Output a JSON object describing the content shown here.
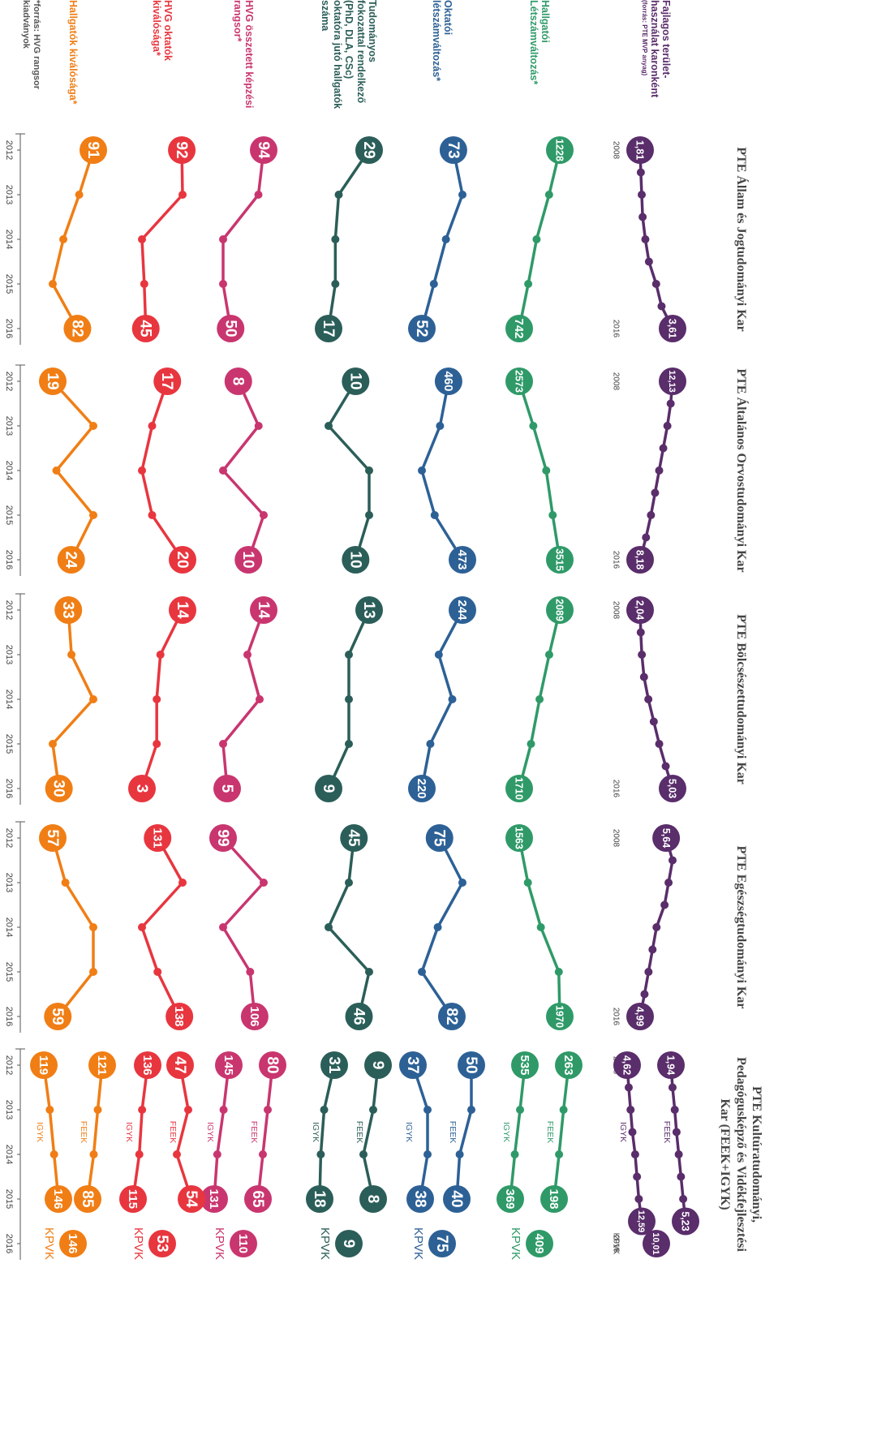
{
  "chart_data": {
    "type": "line",
    "x": [
      "2012",
      "2013",
      "2014",
      "2015",
      "2016"
    ],
    "x_long": [
      "2008",
      null,
      null,
      null,
      null,
      null,
      null,
      null,
      "2016"
    ],
    "source": "*forrás: HVG rangsor kiadványok",
    "metrics": [
      {
        "label": "Fajlagos terület-használat karonként",
        "note": "(forrás: PTE MVP anyag)",
        "color": "#5a2d6b"
      },
      {
        "label": "Hallgatói Létszámváltozás*",
        "color": "#2f9a68"
      },
      {
        "label": "Oktatói létszámváltozás*",
        "color": "#2d6196"
      },
      {
        "label": "Tudományos fokozattal rendelkező (PhD, DLA, CSc) oktatóra jutó hallgatók száma",
        "color": "#2b5e59"
      },
      {
        "label": "HVG összetett képzési rangsor*",
        "color": "#c9366f"
      },
      {
        "label": "HVG oktatók kiválósága*",
        "color": "#e8363f"
      },
      {
        "label": "Hallgatók kiválósága*",
        "color": "#f07e15"
      }
    ],
    "faculties": [
      {
        "title": "PTE Állam és Jogtudományi Kar",
        "panels": [
          {
            "series": [
              {
                "values": [
                  1.81,
                  1.85,
                  1.9,
                  1.95,
                  2.1,
                  2.3,
                  2.7,
                  3.0,
                  3.61
                ],
                "value_labels": [
                  "1,81",
                  null,
                  null,
                  null,
                  null,
                  null,
                  null,
                  null,
                  "3,61"
                ]
              }
            ]
          },
          {
            "series": [
              {
                "values": [
                  1228,
                  1100,
                  950,
                  850,
                  742
                ]
              }
            ]
          },
          {
            "series": [
              {
                "values": [
                  73,
                  79,
                  68,
                  60,
                  52
                ]
              }
            ]
          },
          {
            "series": [
              {
                "values": [
                  29,
                  20,
                  19,
                  19,
                  17
                ]
              }
            ]
          },
          {
            "series": [
              {
                "values": [
                  94,
                  87,
                  40,
                  40,
                  50
                ]
              }
            ]
          },
          {
            "series": [
              {
                "values": [
                  92,
                  93,
                  40,
                  43,
                  45
                ]
              }
            ]
          },
          {
            "series": [
              {
                "values": [
                  91,
                  83,
                  74,
                  68,
                  82
                ]
              }
            ]
          }
        ]
      },
      {
        "title": "PTE Általános Orvostudományi Kar",
        "panels": [
          {
            "series": [
              {
                "values": [
                  12.13,
                  11.9,
                  11.5,
                  11.0,
                  10.5,
                  10.0,
                  9.5,
                  8.9,
                  8.18
                ],
                "value_labels": [
                  "12,13",
                  null,
                  null,
                  null,
                  null,
                  null,
                  null,
                  null,
                  "8,18"
                ]
              }
            ]
          },
          {
            "series": [
              {
                "values": [
                  2573,
                  2900,
                  3200,
                  3350,
                  3515
                ]
              }
            ]
          },
          {
            "series": [
              {
                "values": [
                  460,
                  452,
                  435,
                  447,
                  473
                ]
              }
            ]
          },
          {
            "series": [
              {
                "values": [
                  10,
                  8,
                  11,
                  11,
                  10
                ]
              }
            ]
          },
          {
            "series": [
              {
                "values": [
                  8,
                  12,
                  5,
                  13,
                  10
                ]
              }
            ]
          },
          {
            "series": [
              {
                "values": [
                  17,
                  14,
                  12,
                  14,
                  20
                ]
              }
            ]
          },
          {
            "series": [
              {
                "values": [
                  19,
                  30,
                  20,
                  30,
                  24
                ]
              }
            ]
          }
        ]
      },
      {
        "title": "PTE Bölcsészettudományi Kar",
        "panels": [
          {
            "series": [
              {
                "values": [
                  2.04,
                  2.1,
                  2.2,
                  2.4,
                  2.8,
                  3.3,
                  3.8,
                  4.4,
                  5.03
                ],
                "value_labels": [
                  "2,04",
                  null,
                  null,
                  null,
                  null,
                  null,
                  null,
                  null,
                  "5,03"
                ]
              }
            ]
          },
          {
            "series": [
              {
                "values": [
                  2089,
                  1990,
                  1900,
                  1820,
                  1710
                ]
              }
            ]
          },
          {
            "series": [
              {
                "values": [
                  244,
                  230,
                  238,
                  225,
                  220
                ]
              }
            ]
          },
          {
            "series": [
              {
                "values": [
                  13,
                  11,
                  11,
                  11,
                  9
                ]
              }
            ]
          },
          {
            "series": [
              {
                "values": [
                  14,
                  10,
                  13,
                  4,
                  5
                ]
              }
            ]
          },
          {
            "series": [
              {
                "values": [
                  14,
                  8,
                  7,
                  7,
                  3
                ]
              }
            ]
          },
          {
            "series": [
              {
                "values": [
                  33,
                  34,
                  41,
                  28,
                  30
                ]
              }
            ]
          }
        ]
      },
      {
        "title": "PTE Egészségtudományi Kar",
        "panels": [
          {
            "series": [
              {
                "values": [
                  5.64,
                  5.8,
                  5.7,
                  5.6,
                  5.4,
                  5.3,
                  5.2,
                  5.1,
                  4.99
                ],
                "value_labels": [
                  "5,64",
                  null,
                  null,
                  null,
                  null,
                  null,
                  null,
                  null,
                  "4,99"
                ]
              }
            ]
          },
          {
            "series": [
              {
                "values": [
                  1563,
                  1650,
                  1780,
                  1960,
                  1970
                ]
              }
            ]
          },
          {
            "series": [
              {
                "values": [
                  75,
                  88,
                  74,
                  65,
                  82
                ]
              }
            ]
          },
          {
            "series": [
              {
                "values": [
                  45,
                  44,
                  40,
                  48,
                  46
                ]
              }
            ]
          },
          {
            "series": [
              {
                "values": [
                  99,
                  108,
                  99,
                  105,
                  106
                ]
              }
            ]
          },
          {
            "series": [
              {
                "values": [
                  131,
                  139,
                  126,
                  131,
                  138
                ]
              }
            ]
          },
          {
            "series": [
              {
                "values": [
                  57,
                  62,
                  73,
                  73,
                  59
                ]
              }
            ]
          }
        ]
      },
      {
        "title": "PTE Kultúratudományi, Pedagógusképző és Vidékfejlesztési Kar (FEEK+IGYK)",
        "panels": [
          {
            "series": [
              {
                "name": "FEEK",
                "values": [
                  1.94,
                  2.3,
                  2.8,
                  3.2,
                  3.7,
                  4.2,
                  4.7,
                  5.23,
                  null
                ],
                "value_labels": [
                  "1,94",
                  null,
                  null,
                  null,
                  null,
                  null,
                  null,
                  "5,23",
                  null
                ]
              },
              {
                "name": "IGYK",
                "values": [
                  4.62,
                  5.5,
                  6.5,
                  7.5,
                  9,
                  10,
                  11,
                  12.59,
                  null
                ],
                "value_labels": [
                  "4,62",
                  null,
                  null,
                  null,
                  null,
                  null,
                  null,
                  "12,59",
                  null
                ]
              },
              {
                "name": "KPVK",
                "values": [
                  null,
                  null,
                  null,
                  null,
                  null,
                  null,
                  null,
                  null,
                  10.01
                ],
                "value_labels": [
                  null,
                  null,
                  null,
                  null,
                  null,
                  null,
                  null,
                  null,
                  "10,01"
                ]
              }
            ]
          },
          {
            "series": [
              {
                "name": "FEEK",
                "values": [
                  263,
                  240,
                  220,
                  198,
                  null
                ]
              },
              {
                "name": "IGYK",
                "values": [
                  535,
                  480,
                  420,
                  369,
                  null
                ]
              },
              {
                "name": "KPVK",
                "values": [
                  null,
                  null,
                  null,
                  null,
                  409
                ]
              }
            ]
          },
          {
            "series": [
              {
                "name": "FEEK",
                "values": [
                  50,
                  50,
                  42,
                  40,
                  null
                ]
              },
              {
                "name": "IGYK",
                "values": [
                  37,
                  39,
                  39,
                  38,
                  null
                ]
              },
              {
                "name": "KPVK",
                "values": [
                  null,
                  null,
                  null,
                  null,
                  75
                ]
              }
            ]
          },
          {
            "series": [
              {
                "name": "FEEK",
                "values": [
                  9,
                  8,
                  6,
                  8,
                  null
                ]
              },
              {
                "name": "IGYK",
                "values": [
                  31,
                  22,
                  19,
                  18,
                  null
                ]
              },
              {
                "name": "KPVK",
                "values": [
                  null,
                  null,
                  null,
                  null,
                  9
                ]
              }
            ]
          },
          {
            "series": [
              {
                "name": "FEEK",
                "values": [
                  80,
                  75,
                  70,
                  65,
                  null
                ]
              },
              {
                "name": "IGYK",
                "values": [
                  145,
                  140,
                  134,
                  131,
                  null
                ]
              },
              {
                "name": "KPVK",
                "values": [
                  null,
                  null,
                  null,
                  null,
                  110
                ]
              }
            ]
          },
          {
            "series": [
              {
                "name": "FEEK",
                "values": [
                  47,
                  52,
                  45,
                  54,
                  null
                ]
              },
              {
                "name": "IGYK",
                "values": [
                  136,
                  128,
                  124,
                  115,
                  null
                ]
              },
              {
                "name": "KPVK",
                "values": [
                  null,
                  null,
                  null,
                  null,
                  53
                ]
              }
            ]
          },
          {
            "series": [
              {
                "name": "FEEK",
                "values": [
                  121,
                  110,
                  100,
                  85,
                  null
                ]
              },
              {
                "name": "IGYK",
                "values": [
                  119,
                  130,
                  138,
                  146,
                  null
                ]
              },
              {
                "name": "KPVK",
                "values": [
                  null,
                  null,
                  null,
                  null,
                  146
                ]
              }
            ]
          }
        ]
      }
    ]
  }
}
